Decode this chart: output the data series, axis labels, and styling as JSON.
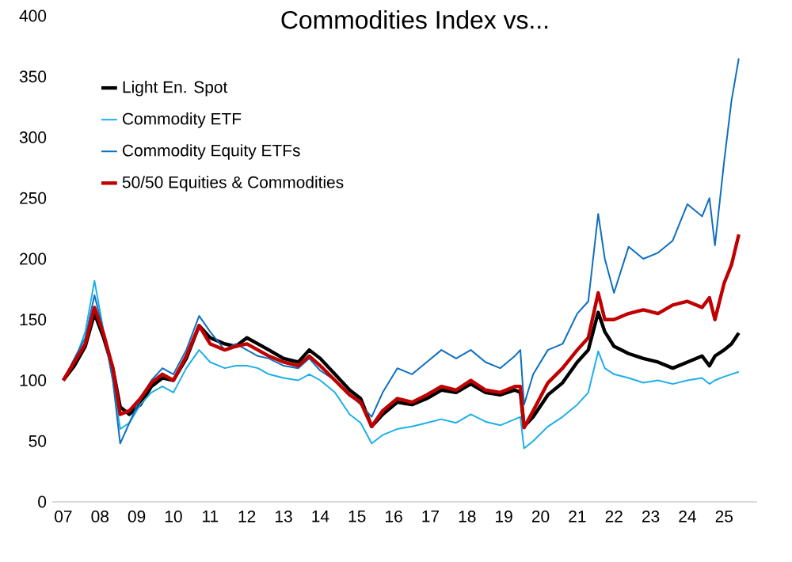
{
  "chart_data": {
    "type": "line",
    "title": "Commodities Index vs...",
    "x": [
      2007.0,
      2007.3,
      2007.6,
      2007.85,
      2008.1,
      2008.35,
      2008.55,
      2008.8,
      2009.1,
      2009.4,
      2009.7,
      2010.0,
      2010.35,
      2010.7,
      2011.0,
      2011.4,
      2011.7,
      2012.0,
      2012.3,
      2012.6,
      2013.0,
      2013.4,
      2013.7,
      2014.0,
      2014.4,
      2014.8,
      2015.1,
      2015.4,
      2015.7,
      2016.1,
      2016.5,
      2016.9,
      2017.3,
      2017.7,
      2018.1,
      2018.5,
      2018.9,
      2019.3,
      2019.45,
      2019.55,
      2019.8,
      2020.2,
      2020.6,
      2021.0,
      2021.3,
      2021.57,
      2021.75,
      2022.0,
      2022.4,
      2022.8,
      2023.2,
      2023.6,
      2024.0,
      2024.4,
      2024.6,
      2024.75,
      2025.0,
      2025.2,
      2025.4
    ],
    "series": [
      {
        "name": "Light En. Spot",
        "color": "#000000",
        "values": [
          100,
          112,
          128,
          155,
          135,
          110,
          78,
          72,
          80,
          95,
          102,
          100,
          118,
          145,
          135,
          130,
          128,
          135,
          130,
          125,
          118,
          115,
          125,
          118,
          105,
          92,
          85,
          62,
          72,
          82,
          80,
          85,
          92,
          90,
          97,
          90,
          88,
          92,
          90,
          62,
          70,
          88,
          98,
          115,
          125,
          156,
          140,
          128,
          122,
          118,
          115,
          110,
          115,
          120,
          112,
          120,
          125,
          130,
          139
        ]
      },
      {
        "name": "Commodity ETF",
        "color": "#1cb0e8",
        "values": [
          100,
          115,
          140,
          182,
          140,
          100,
          60,
          65,
          80,
          90,
          95,
          90,
          110,
          125,
          115,
          110,
          112,
          112,
          110,
          105,
          102,
          100,
          105,
          100,
          90,
          72,
          65,
          48,
          55,
          60,
          62,
          65,
          68,
          65,
          72,
          66,
          63,
          68,
          70,
          44,
          50,
          62,
          70,
          80,
          90,
          124,
          110,
          105,
          102,
          98,
          100,
          97,
          100,
          102,
          97,
          100,
          103,
          105,
          107
        ]
      },
      {
        "name": "Commodity Equity ETFs",
        "color": "#0f6fbe",
        "values": [
          100,
          118,
          135,
          170,
          140,
          100,
          48,
          65,
          85,
          100,
          110,
          105,
          125,
          153,
          140,
          125,
          130,
          125,
          120,
          118,
          112,
          110,
          118,
          108,
          100,
          88,
          80,
          70,
          90,
          110,
          105,
          115,
          125,
          118,
          125,
          115,
          110,
          120,
          125,
          80,
          105,
          125,
          130,
          155,
          165,
          237,
          200,
          172,
          210,
          200,
          205,
          215,
          245,
          235,
          250,
          211,
          280,
          330,
          365
        ]
      },
      {
        "name": "50/50 Equities & Commodities",
        "color": "#c00000",
        "values": [
          100,
          115,
          130,
          160,
          138,
          110,
          72,
          75,
          85,
          98,
          105,
          100,
          120,
          145,
          130,
          125,
          128,
          130,
          125,
          120,
          115,
          112,
          120,
          112,
          100,
          88,
          82,
          62,
          75,
          85,
          82,
          88,
          95,
          92,
          100,
          92,
          90,
          95,
          95,
          61,
          75,
          98,
          110,
          125,
          135,
          172,
          150,
          150,
          155,
          158,
          155,
          162,
          165,
          160,
          168,
          150,
          180,
          195,
          220
        ]
      }
    ],
    "xlim": [
      2006.7,
      2025.9
    ],
    "xticks": [
      {
        "value": 2007,
        "label": "07"
      },
      {
        "value": 2008,
        "label": "08"
      },
      {
        "value": 2009,
        "label": "09"
      },
      {
        "value": 2010,
        "label": "10"
      },
      {
        "value": 2011,
        "label": "11"
      },
      {
        "value": 2012,
        "label": "12"
      },
      {
        "value": 2013,
        "label": "13"
      },
      {
        "value": 2014,
        "label": "14"
      },
      {
        "value": 2015,
        "label": "15"
      },
      {
        "value": 2016,
        "label": "16"
      },
      {
        "value": 2017,
        "label": "17"
      },
      {
        "value": 2018,
        "label": "18"
      },
      {
        "value": 2019,
        "label": "19"
      },
      {
        "value": 2020,
        "label": "20"
      },
      {
        "value": 2021,
        "label": "21"
      },
      {
        "value": 2022,
        "label": "22"
      },
      {
        "value": 2023,
        "label": "23"
      },
      {
        "value": 2024,
        "label": "24"
      },
      {
        "value": 2025,
        "label": "25"
      }
    ],
    "ylim": [
      0,
      400
    ],
    "yticks": [
      0,
      50,
      100,
      150,
      200,
      250,
      300,
      350,
      400
    ],
    "legend": "top left",
    "marker": "none",
    "line_style": "solid"
  }
}
